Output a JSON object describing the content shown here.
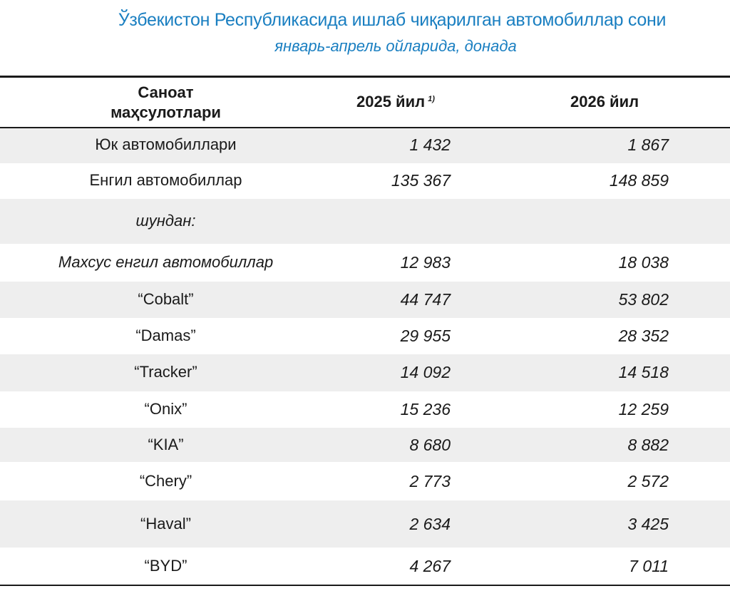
{
  "title": "Ўзбекистон Республикасида ишлаб чиқарилган автомобиллар сони",
  "subtitle": "январь-апрель ойларида, донада",
  "table": {
    "headers": {
      "name_line1": "Саноат",
      "name_line2": "маҳсулотлари",
      "year1": "2025 йил",
      "year1_note": "1)",
      "year2": "2026 йил"
    },
    "rows": [
      {
        "name": "Юк автомобиллари",
        "y2025": "1 432",
        "y2026": "1 867"
      },
      {
        "name": "Енгил автомобиллар",
        "y2025": "135 367",
        "y2026": "148 859"
      },
      {
        "name": "шундан:",
        "y2025": "",
        "y2026": ""
      },
      {
        "name": "Махсус енгил автомобиллар",
        "y2025": "12 983",
        "y2026": "18 038"
      },
      {
        "name": "“Cobalt”",
        "y2025": "44 747",
        "y2026": "53 802"
      },
      {
        "name": "“Damas”",
        "y2025": "29 955",
        "y2026": "28 352"
      },
      {
        "name": "“Tracker”",
        "y2025": "14 092",
        "y2026": "14 518"
      },
      {
        "name": "“Onix”",
        "y2025": "15 236",
        "y2026": "12 259"
      },
      {
        "name": "“KIA”",
        "y2025": "8 680",
        "y2026": "8 882"
      },
      {
        "name": "“Chery”",
        "y2025": "2 773",
        "y2026": "2 572"
      },
      {
        "name": "“Haval”",
        "y2025": "2 634",
        "y2026": "3 425"
      },
      {
        "name": "“BYD”",
        "y2025": "4 267",
        "y2026": "7 011"
      }
    ]
  }
}
